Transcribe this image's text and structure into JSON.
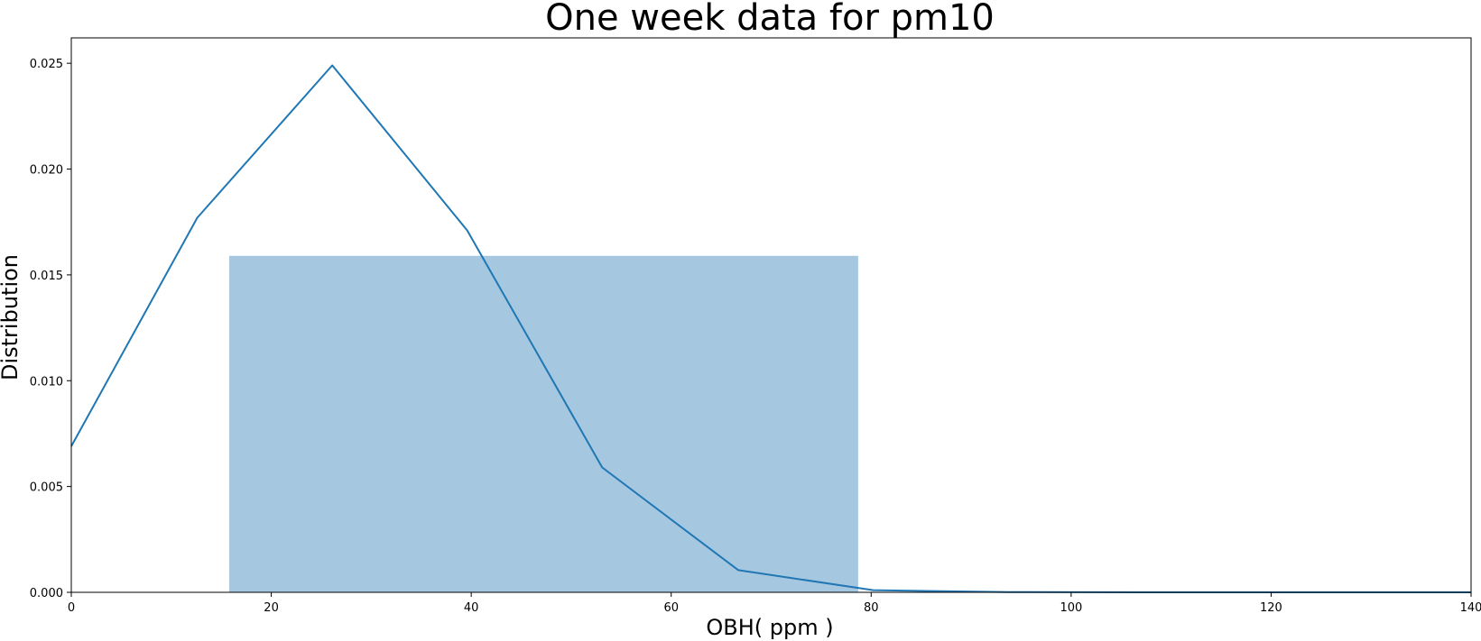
{
  "chart_data": {
    "type": "histogram+line",
    "title": "One week data for pm10",
    "xlabel": "OBH( ppm )",
    "ylabel": "Distribution",
    "xlim": [
      0,
      140
    ],
    "ylim": [
      0,
      0.0262
    ],
    "xticks": [
      0,
      20,
      40,
      60,
      80,
      100,
      120,
      140
    ],
    "xtick_labels": [
      "0",
      "20",
      "40",
      "60",
      "80",
      "100",
      "120",
      "140"
    ],
    "yticks": [
      0,
      0.005,
      0.01,
      0.015,
      0.02,
      0.025
    ],
    "ytick_labels": [
      "0.000",
      "0.005",
      "0.010",
      "0.015",
      "0.020",
      "0.025"
    ],
    "grid": false,
    "bars": [
      {
        "x0": 15.8,
        "x1": 78.7,
        "value": 0.0159
      }
    ],
    "line": {
      "x": [
        0,
        12.6,
        26.1,
        39.6,
        53.1,
        66.7,
        80.2,
        93.7,
        107.2,
        120.7,
        140
      ],
      "y": [
        0.0069,
        0.0177,
        0.0249,
        0.0171,
        0.0059,
        0.00105,
        0.0001,
        1e-05,
        0.0,
        0.0,
        0.0
      ]
    },
    "colors": {
      "bar": "#a6c7e0",
      "line": "#1f77b4"
    }
  }
}
